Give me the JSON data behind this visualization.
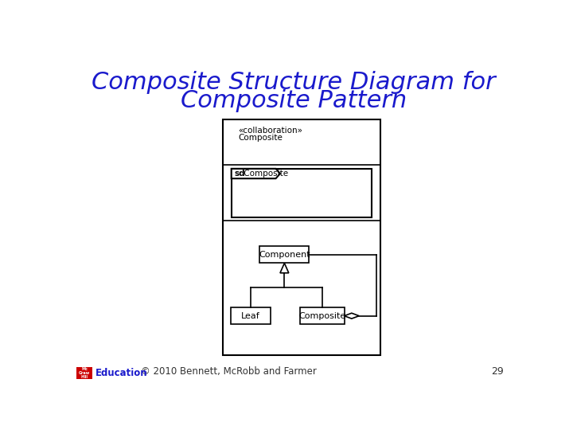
{
  "title_line1": "Composite Structure Diagram for",
  "title_line2": "Composite Pattern",
  "title_color": "#1a1acc",
  "title_fontsize": 22,
  "bg_color": "#ffffff",
  "footer_text": "© 2010 Bennett, McRobb and Farmer",
  "footer_page": "29",
  "diagram_color": "#000000",
  "collab_stereo": "«collaboration»",
  "collab_name": "Composite",
  "sd_label_bold": "sd",
  "sd_label_normal": " Composite",
  "component_label": "Component",
  "leaf_label": "Leaf",
  "composite_label": "Composite"
}
